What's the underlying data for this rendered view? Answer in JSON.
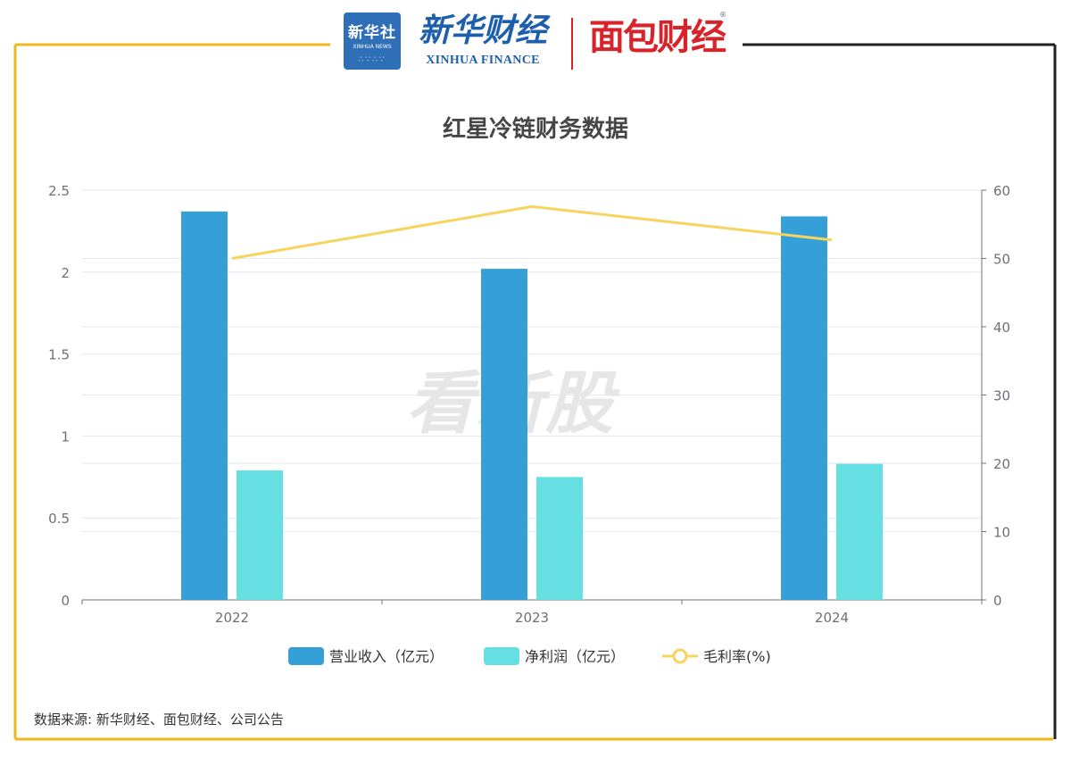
{
  "logos": {
    "xinhua_box_text": "新华社",
    "xinhua_box_sub": "XINHUA NEWS",
    "xinhua_finance_cn": "新华财经",
    "xinhua_finance_en": "XINHUA FINANCE",
    "mianbao": "面包财经",
    "reg_mark": "®"
  },
  "watermark": "看新股",
  "source_note": "数据来源: 新华财经、面包财经、公司公告",
  "colors": {
    "frame_yellow": "#f0b81e",
    "frame_dark": "#222222",
    "revenue_bar": "#35a0d8",
    "profit_bar": "#66dfe2",
    "margin_line": "#f8d35e",
    "grid": "#e4e6f2",
    "axis": "#6e7079"
  },
  "chart_data": {
    "type": "bar",
    "title": "红星冷链财务数据",
    "categories": [
      "2022",
      "2023",
      "2024"
    ],
    "series": [
      {
        "name": "营业收入（亿元）",
        "type": "bar",
        "axis": "left",
        "values": [
          2.37,
          2.02,
          2.34
        ]
      },
      {
        "name": "净利润（亿元）",
        "type": "bar",
        "axis": "left",
        "values": [
          0.79,
          0.75,
          0.83
        ]
      },
      {
        "name": "毛利率(%)",
        "type": "line",
        "axis": "right",
        "values": [
          50.0,
          57.6,
          52.7
        ]
      }
    ],
    "y_left": {
      "min": 0,
      "max": 2.5,
      "ticks": [
        "0",
        "0.5",
        "1",
        "1.5",
        "2",
        "2.5"
      ]
    },
    "y_right": {
      "min": 0,
      "max": 60,
      "ticks": [
        "0",
        "10",
        "20",
        "30",
        "40",
        "50",
        "60"
      ]
    },
    "grid": true,
    "legend_position": "bottom-center"
  }
}
